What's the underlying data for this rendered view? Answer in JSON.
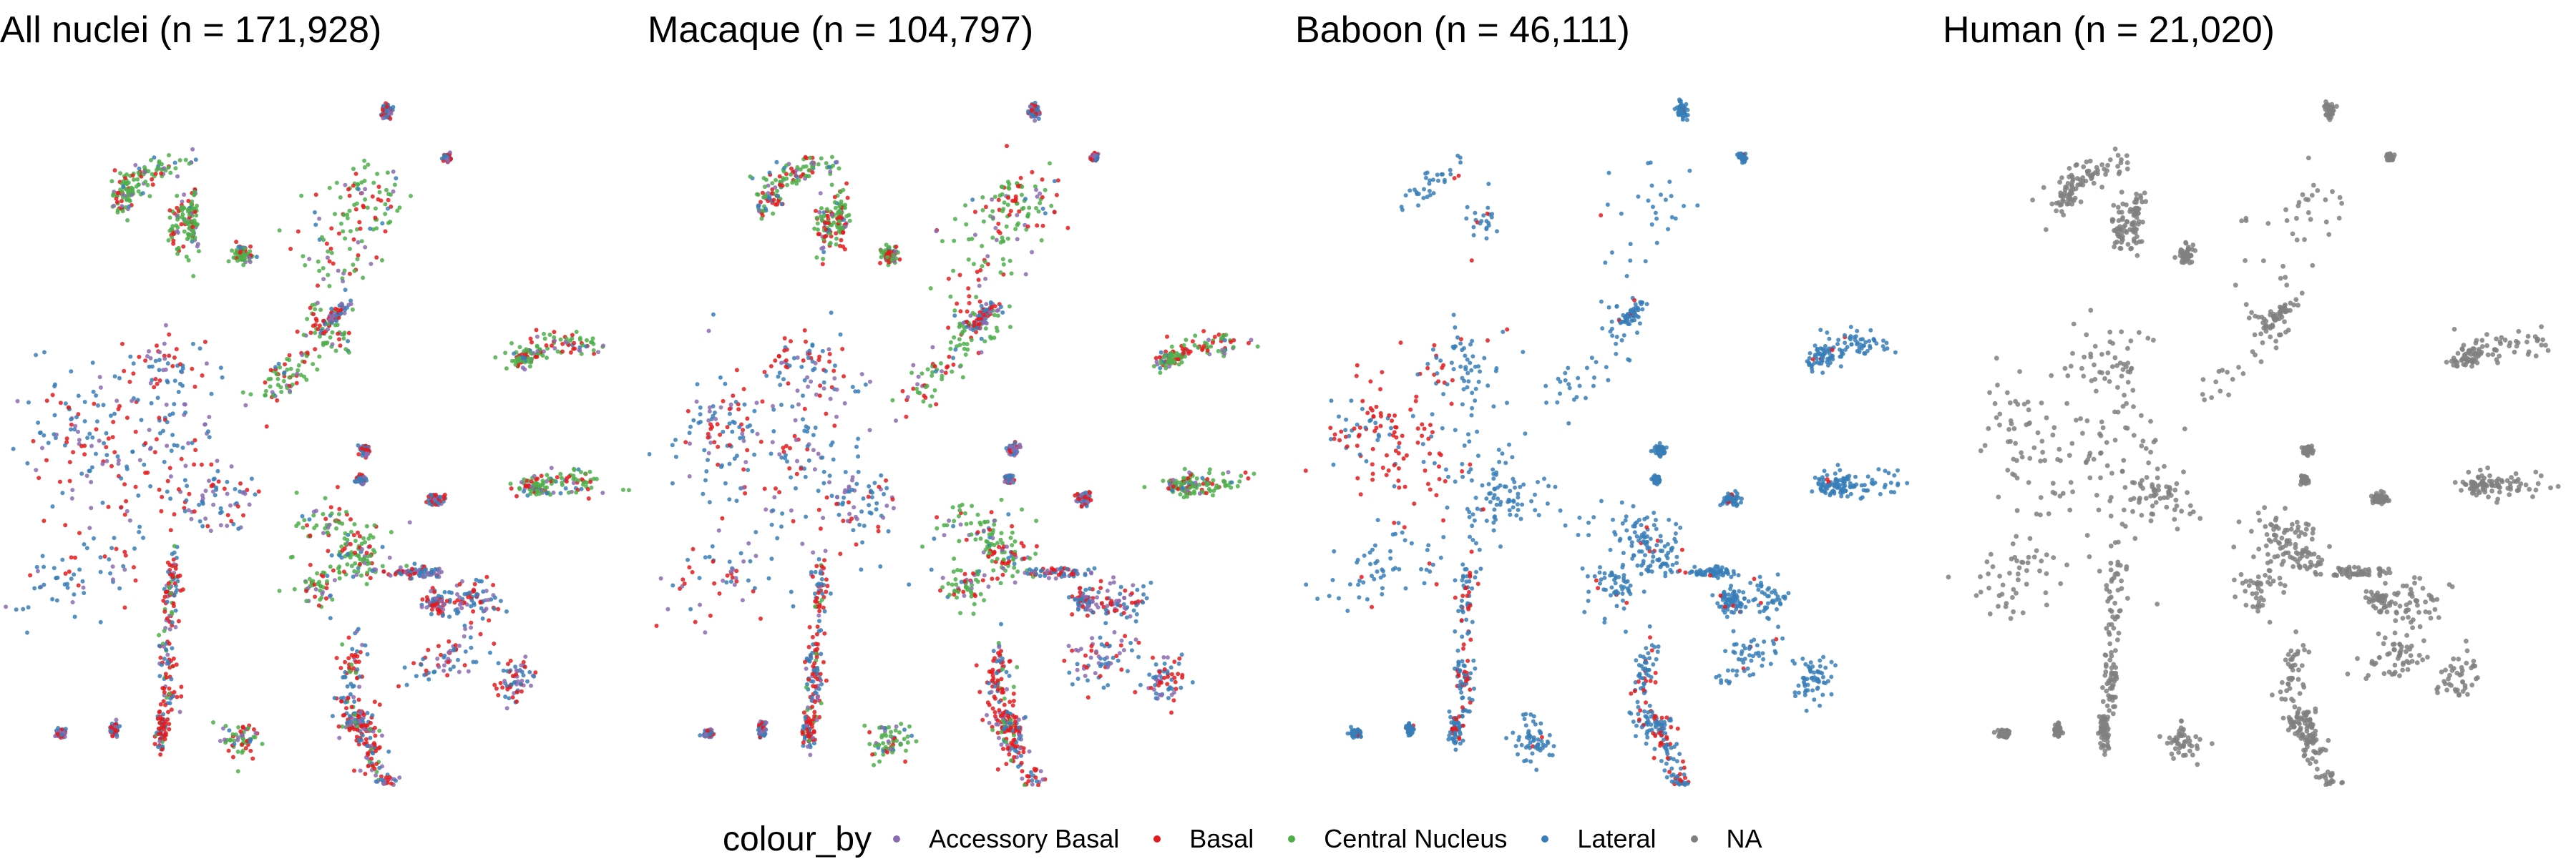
{
  "chart_data": {
    "type": "scatter",
    "legend": {
      "title": "colour_by",
      "position": "bottom",
      "entries": [
        {
          "label": "Accessory Basal",
          "color": "#8B6BB0"
        },
        {
          "label": "Basal",
          "color": "#E41A1C"
        },
        {
          "label": "Central Nucleus",
          "color": "#4DAF4A"
        },
        {
          "label": "Lateral",
          "color": "#377EB8"
        },
        {
          "label": "NA",
          "color": "#808080"
        }
      ]
    },
    "grid": false,
    "axes_visible": false,
    "panels": [
      {
        "title": "All nuclei (n = 171,928)",
        "coloring": "mixed_all"
      },
      {
        "title": "Macaque (n = 104,797)",
        "coloring": "mixed_all"
      },
      {
        "title": "Baboon (n = 46,111)",
        "coloring": "lateral_basal"
      },
      {
        "title": "Human (n = 21,020)",
        "coloring": "na"
      }
    ]
  }
}
